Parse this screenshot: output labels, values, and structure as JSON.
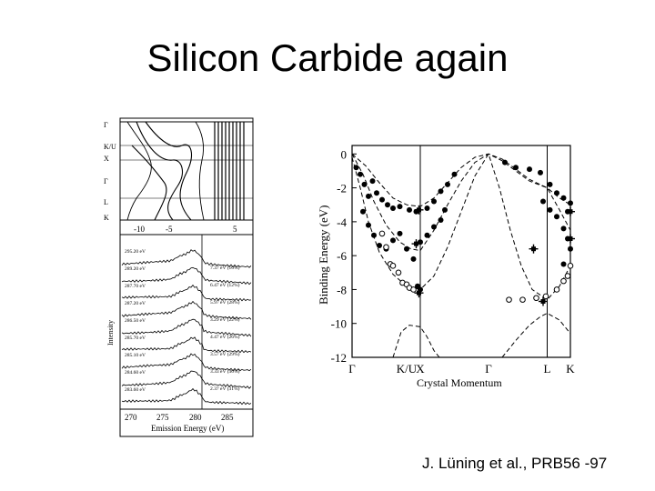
{
  "slide": {
    "title": "Silicon Carbide again",
    "citation": "J. Lüning et al., PRB56 -97"
  },
  "left_figure": {
    "band_panel": {
      "y_labels": [
        "Γ",
        "K/U",
        "X",
        "Γ",
        "L",
        "K"
      ],
      "x_ticks": [
        "-10",
        "-5",
        "5"
      ]
    },
    "spectra_panel": {
      "ylabel": "Intensity",
      "xlabel": "Emission Energy (eV)",
      "x_ticks": [
        "270",
        "275",
        "280",
        "285"
      ],
      "excitation_labels": [
        "295.20 eV",
        "289.20 eV",
        "287.70 eV",
        "287.20 eV",
        "286.50 eV",
        "285.70 eV",
        "285.10 eV",
        "284.60 eV",
        "283.60 eV"
      ],
      "peak_labels": [
        "7.37 eV (16%)",
        "6.47 eV (12%)",
        "5.97 eV (28%)",
        "3.29 eV (22%)",
        "4.47 eV (26%)",
        "3.57 eV (29%)",
        "3.33 eV (30%)",
        "2.37 eV (31%)"
      ]
    }
  },
  "chart_data": {
    "type": "scatter",
    "title": "",
    "xlabel": "Crystal Momentum",
    "ylabel": "Binding Energy (eV)",
    "ylim": [
      -12,
      0.5
    ],
    "y_ticks": [
      0,
      -2,
      -4,
      -6,
      -8,
      -10,
      -12
    ],
    "x_tick_labels": [
      "Γ",
      "K/U",
      "X",
      "Γ",
      "L",
      "K"
    ],
    "x_tick_positions": [
      0,
      0.4,
      0.5,
      1.0,
      1.43,
      1.6
    ],
    "xlim": [
      0,
      1.6
    ],
    "series": [
      {
        "marker": "filled-circle",
        "points": [
          [
            0.03,
            -0.8
          ],
          [
            0.06,
            -1.2
          ],
          [
            0.09,
            -1.8
          ],
          [
            0.12,
            -2.5
          ],
          [
            0.15,
            -1.6
          ],
          [
            0.18,
            -2.3
          ],
          [
            0.22,
            -2.7
          ],
          [
            0.26,
            -3.0
          ],
          [
            0.3,
            -3.2
          ],
          [
            0.35,
            -3.1
          ],
          [
            0.42,
            -3.3
          ],
          [
            0.47,
            -3.4
          ],
          [
            0.55,
            -3.2
          ],
          [
            0.6,
            -2.8
          ],
          [
            0.65,
            -2.2
          ],
          [
            0.7,
            -1.8
          ],
          [
            0.75,
            -1.2
          ],
          [
            0.08,
            -3.4
          ],
          [
            0.12,
            -4.2
          ],
          [
            0.16,
            -4.8
          ],
          [
            0.2,
            -5.4
          ],
          [
            0.25,
            -5.6
          ],
          [
            0.3,
            -5.1
          ],
          [
            0.35,
            -4.7
          ],
          [
            0.4,
            -5.6
          ],
          [
            0.45,
            -6.2
          ],
          [
            0.5,
            -5.2
          ],
          [
            0.55,
            -4.8
          ],
          [
            0.6,
            -4.3
          ],
          [
            0.65,
            -3.9
          ],
          [
            0.68,
            -3.3
          ],
          [
            0.48,
            -7.8
          ],
          [
            0.5,
            -8.0
          ],
          [
            1.12,
            -0.5
          ],
          [
            1.2,
            -0.8
          ],
          [
            1.3,
            -0.9
          ],
          [
            1.38,
            -1.1
          ],
          [
            1.45,
            -1.8
          ],
          [
            1.5,
            -2.3
          ],
          [
            1.55,
            -2.6
          ],
          [
            1.58,
            -3.4
          ],
          [
            1.6,
            -2.9
          ],
          [
            1.4,
            -2.8
          ],
          [
            1.45,
            -3.3
          ],
          [
            1.5,
            -3.7
          ],
          [
            1.55,
            -4.4
          ],
          [
            1.58,
            -5.0
          ],
          [
            1.6,
            -5.6
          ],
          [
            1.55,
            -6.5
          ]
        ]
      },
      {
        "marker": "open-circle",
        "points": [
          [
            0.28,
            -6.5
          ],
          [
            0.3,
            -6.6
          ],
          [
            0.34,
            -7.0
          ],
          [
            0.37,
            -7.6
          ],
          [
            0.4,
            -7.7
          ],
          [
            0.42,
            -7.9
          ],
          [
            0.45,
            -8.0
          ],
          [
            1.15,
            -8.6
          ],
          [
            1.25,
            -8.6
          ],
          [
            1.35,
            -8.5
          ],
          [
            1.42,
            -8.4
          ],
          [
            1.5,
            -8.0
          ],
          [
            1.55,
            -7.5
          ],
          [
            1.58,
            -7.2
          ],
          [
            1.6,
            -6.6
          ],
          [
            0.25,
            -5.5
          ],
          [
            0.22,
            -4.7
          ]
        ]
      },
      {
        "marker": "cross",
        "points": [
          [
            0.49,
            -3.3
          ],
          [
            0.47,
            -5.3
          ],
          [
            0.49,
            -8.2
          ],
          [
            1.33,
            -5.6
          ],
          [
            1.4,
            -8.7
          ],
          [
            1.6,
            -5.0
          ],
          [
            1.6,
            -3.4
          ]
        ]
      }
    ],
    "curves": [
      {
        "style": "dashed",
        "points": [
          [
            0,
            0
          ],
          [
            0.1,
            -0.7
          ],
          [
            0.2,
            -1.7
          ],
          [
            0.3,
            -2.6
          ],
          [
            0.4,
            -3.0
          ],
          [
            0.5,
            -3.1
          ],
          [
            0.6,
            -2.6
          ],
          [
            0.7,
            -1.7
          ],
          [
            0.8,
            -0.8
          ],
          [
            0.9,
            -0.2
          ],
          [
            1.0,
            0
          ],
          [
            1.1,
            -0.3
          ],
          [
            1.2,
            -0.9
          ],
          [
            1.3,
            -1.5
          ],
          [
            1.43,
            -2.0
          ],
          [
            1.52,
            -2.6
          ],
          [
            1.6,
            -3.0
          ]
        ]
      },
      {
        "style": "dashed",
        "points": [
          [
            0,
            0
          ],
          [
            0.08,
            -1.2
          ],
          [
            0.16,
            -2.8
          ],
          [
            0.25,
            -4.2
          ],
          [
            0.35,
            -5.2
          ],
          [
            0.43,
            -5.6
          ],
          [
            0.5,
            -5.7
          ],
          [
            0.6,
            -4.5
          ],
          [
            0.7,
            -3.0
          ],
          [
            0.8,
            -1.6
          ],
          [
            0.9,
            -0.5
          ],
          [
            1.0,
            0
          ],
          [
            1.1,
            -0.4
          ],
          [
            1.2,
            -1.0
          ],
          [
            1.3,
            -1.6
          ],
          [
            1.43,
            -2.0
          ],
          [
            1.52,
            -3.3
          ],
          [
            1.6,
            -4.5
          ]
        ]
      },
      {
        "style": "dashed",
        "points": [
          [
            0,
            -0.2
          ],
          [
            0.06,
            -2.0
          ],
          [
            0.12,
            -4.0
          ],
          [
            0.2,
            -5.8
          ],
          [
            0.3,
            -7.1
          ],
          [
            0.4,
            -7.8
          ],
          [
            0.5,
            -8.0
          ],
          [
            0.6,
            -7.2
          ],
          [
            0.7,
            -5.5
          ],
          [
            0.8,
            -3.4
          ],
          [
            0.9,
            -1.3
          ],
          [
            1.0,
            0
          ],
          [
            1.08,
            -2.0
          ],
          [
            1.16,
            -4.5
          ],
          [
            1.24,
            -6.6
          ],
          [
            1.32,
            -8.0
          ],
          [
            1.43,
            -8.6
          ],
          [
            1.52,
            -7.8
          ],
          [
            1.6,
            -6.6
          ]
        ]
      },
      {
        "style": "dashed",
        "points": [
          [
            0.3,
            -12
          ],
          [
            0.36,
            -10.5
          ],
          [
            0.42,
            -10.1
          ],
          [
            0.5,
            -10.2
          ],
          [
            0.55,
            -10.8
          ],
          [
            0.6,
            -11.6
          ],
          [
            0.64,
            -12
          ]
        ]
      },
      {
        "style": "dashed",
        "points": [
          [
            1.1,
            -12
          ],
          [
            1.2,
            -11.0
          ],
          [
            1.3,
            -10.1
          ],
          [
            1.38,
            -9.6
          ],
          [
            1.43,
            -9.4
          ],
          [
            1.52,
            -9.8
          ],
          [
            1.6,
            -10.6
          ]
        ]
      }
    ]
  }
}
